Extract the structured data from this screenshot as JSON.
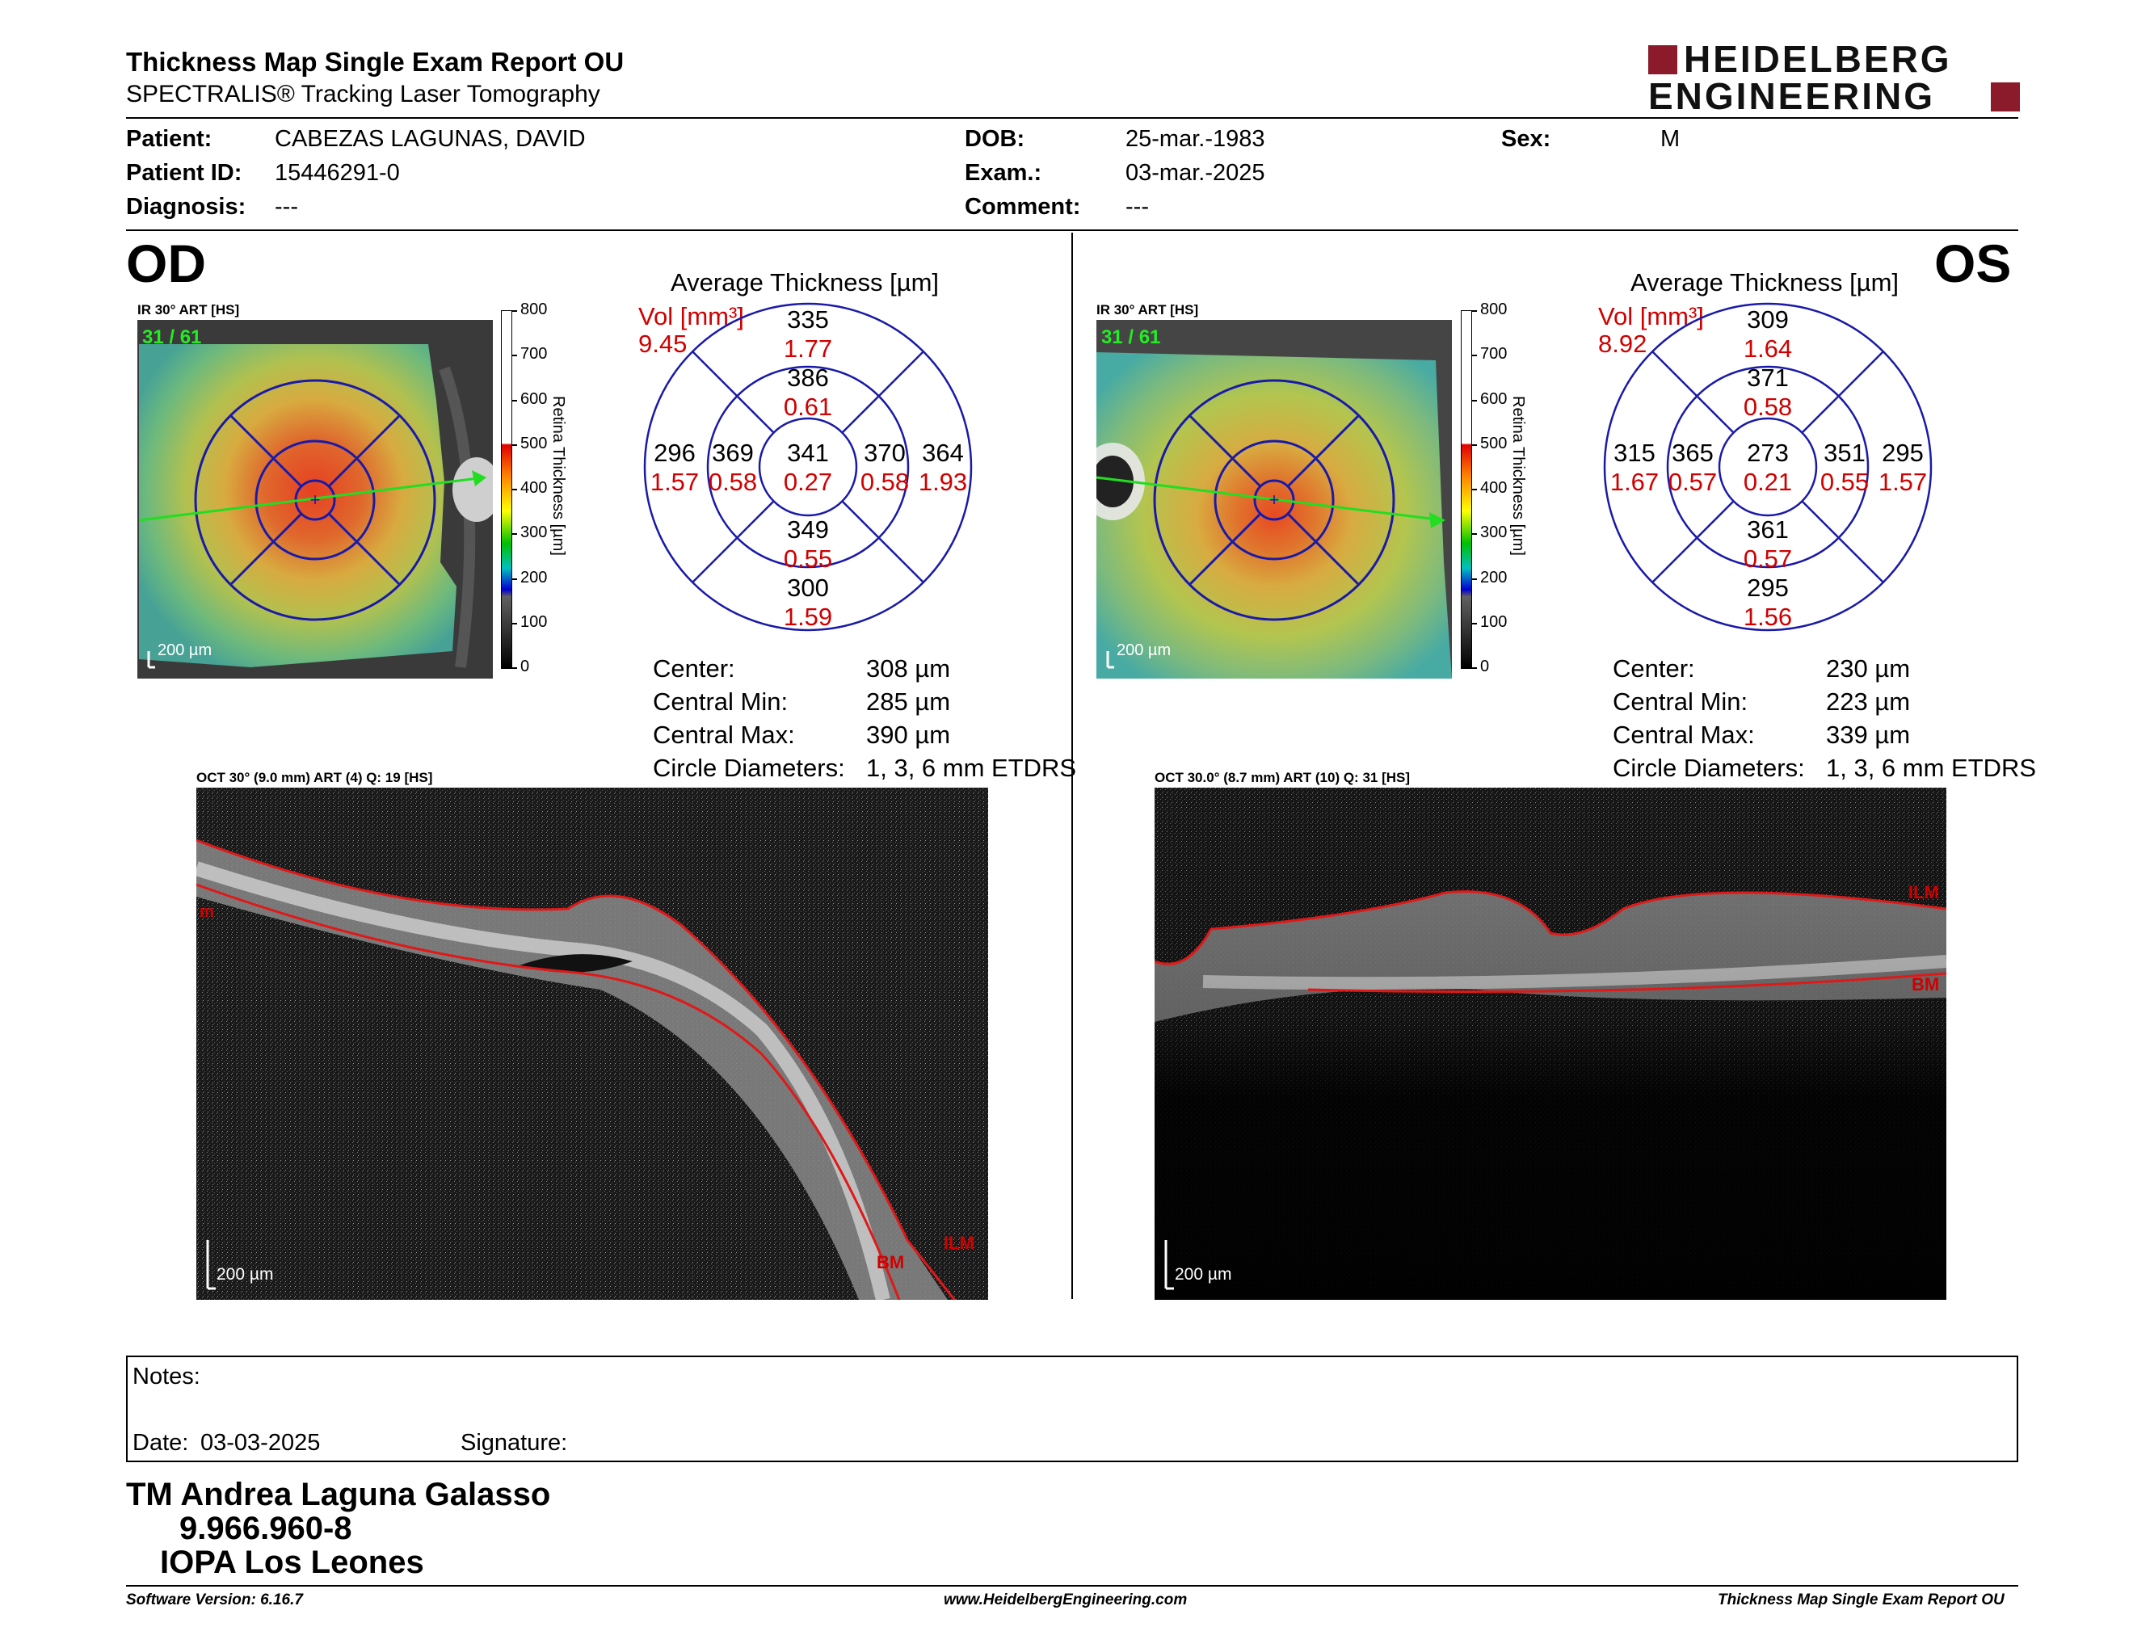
{
  "header": {
    "title": "Thickness Map Single Exam Report OU",
    "subtitle": "SPECTRALIS® Tracking Laser Tomography",
    "logo_line1": "HEIDELBERG",
    "logo_line2": "ENGINEERING"
  },
  "patient": {
    "patient_label": "Patient:",
    "patient_value": "CABEZAS LAGUNAS, DAVID",
    "id_label": "Patient ID:",
    "id_value": "15446291-0",
    "diag_label": "Diagnosis:",
    "diag_value": "---",
    "dob_label": "DOB:",
    "dob_value": "25-mar.-1983",
    "exam_label": "Exam.:",
    "exam_value": "03-mar.-2025",
    "comment_label": "Comment:",
    "comment_value": "---",
    "sex_label": "Sex:",
    "sex_value": "M"
  },
  "scale": {
    "ticks": [
      "800",
      "700",
      "600",
      "500",
      "400",
      "300",
      "200",
      "100",
      "0"
    ],
    "label": "Retina Thickness [µm]"
  },
  "od": {
    "eye": "OD",
    "ir_label": "IR 30° ART [HS]",
    "ir_frames": "31 / 61",
    "ir_scalebar": "200 µm",
    "avg_title": "Average Thickness [µm]",
    "vol_label": "Vol [mm³]",
    "vol_value": "9.45",
    "sectors": {
      "outer_sup": [
        "335",
        "1.77"
      ],
      "inner_sup": [
        "386",
        "0.61"
      ],
      "outer_temp": [
        "296",
        "1.57"
      ],
      "inner_temp": [
        "369",
        "0.58"
      ],
      "center": [
        "341",
        "0.27"
      ],
      "inner_nas": [
        "370",
        "0.58"
      ],
      "outer_nas": [
        "364",
        "1.93"
      ],
      "inner_inf": [
        "349",
        "0.55"
      ],
      "outer_inf": [
        "300",
        "1.59"
      ]
    },
    "stats": [
      {
        "label": "Center:",
        "value": "308 µm"
      },
      {
        "label": "Central Min:",
        "value": "285 µm"
      },
      {
        "label": "Central Max:",
        "value": "390 µm"
      },
      {
        "label": "Circle Diameters:",
        "value": "1, 3, 6 mm ETDRS"
      }
    ],
    "oct_label": "OCT 30° (9.0 mm) ART (4) Q: 19 [HS]",
    "oct_scalebar": "200 µm",
    "ilm": "ILM",
    "bm": "BM",
    "m_tag": "m"
  },
  "os": {
    "eye": "OS",
    "ir_label": "IR 30° ART [HS]",
    "ir_frames": "31 / 61",
    "ir_scalebar": "200 µm",
    "avg_title": "Average Thickness [µm]",
    "vol_label": "Vol [mm³]",
    "vol_value": "8.92",
    "sectors": {
      "outer_sup": [
        "309",
        "1.64"
      ],
      "inner_sup": [
        "371",
        "0.58"
      ],
      "outer_temp": [
        "315",
        "1.67"
      ],
      "inner_temp": [
        "365",
        "0.57"
      ],
      "center": [
        "273",
        "0.21"
      ],
      "inner_nas": [
        "351",
        "0.55"
      ],
      "outer_nas": [
        "295",
        "1.57"
      ],
      "inner_inf": [
        "361",
        "0.57"
      ],
      "outer_inf": [
        "295",
        "1.56"
      ]
    },
    "stats": [
      {
        "label": "Center:",
        "value": "230 µm"
      },
      {
        "label": "Central Min:",
        "value": "223 µm"
      },
      {
        "label": "Central Max:",
        "value": "339 µm"
      },
      {
        "label": "Circle Diameters:",
        "value": "1, 3, 6 mm ETDRS"
      }
    ],
    "oct_label": "OCT 30.0° (8.7 mm) ART (10) Q: 31 [HS]",
    "oct_scalebar": "200 µm",
    "ilm": "ILM",
    "bm": "BM"
  },
  "notes": {
    "notes_label": "Notes:",
    "date_label": "Date:",
    "date_value": "03-03-2025",
    "signature_label": "Signature:"
  },
  "signer": {
    "name": "TM Andrea Laguna Galasso",
    "rut": "9.966.960-8",
    "org": "IOPA Los Leones"
  },
  "footer": {
    "version": "Software Version: 6.16.7",
    "url": "www.HeidelbergEngineering.com",
    "report": "Thickness Map Single Exam Report OU"
  },
  "colors": {
    "accent_red": "#d00000",
    "logo_red": "#8b1a2b",
    "circle_blue": "#1a1aa8"
  }
}
